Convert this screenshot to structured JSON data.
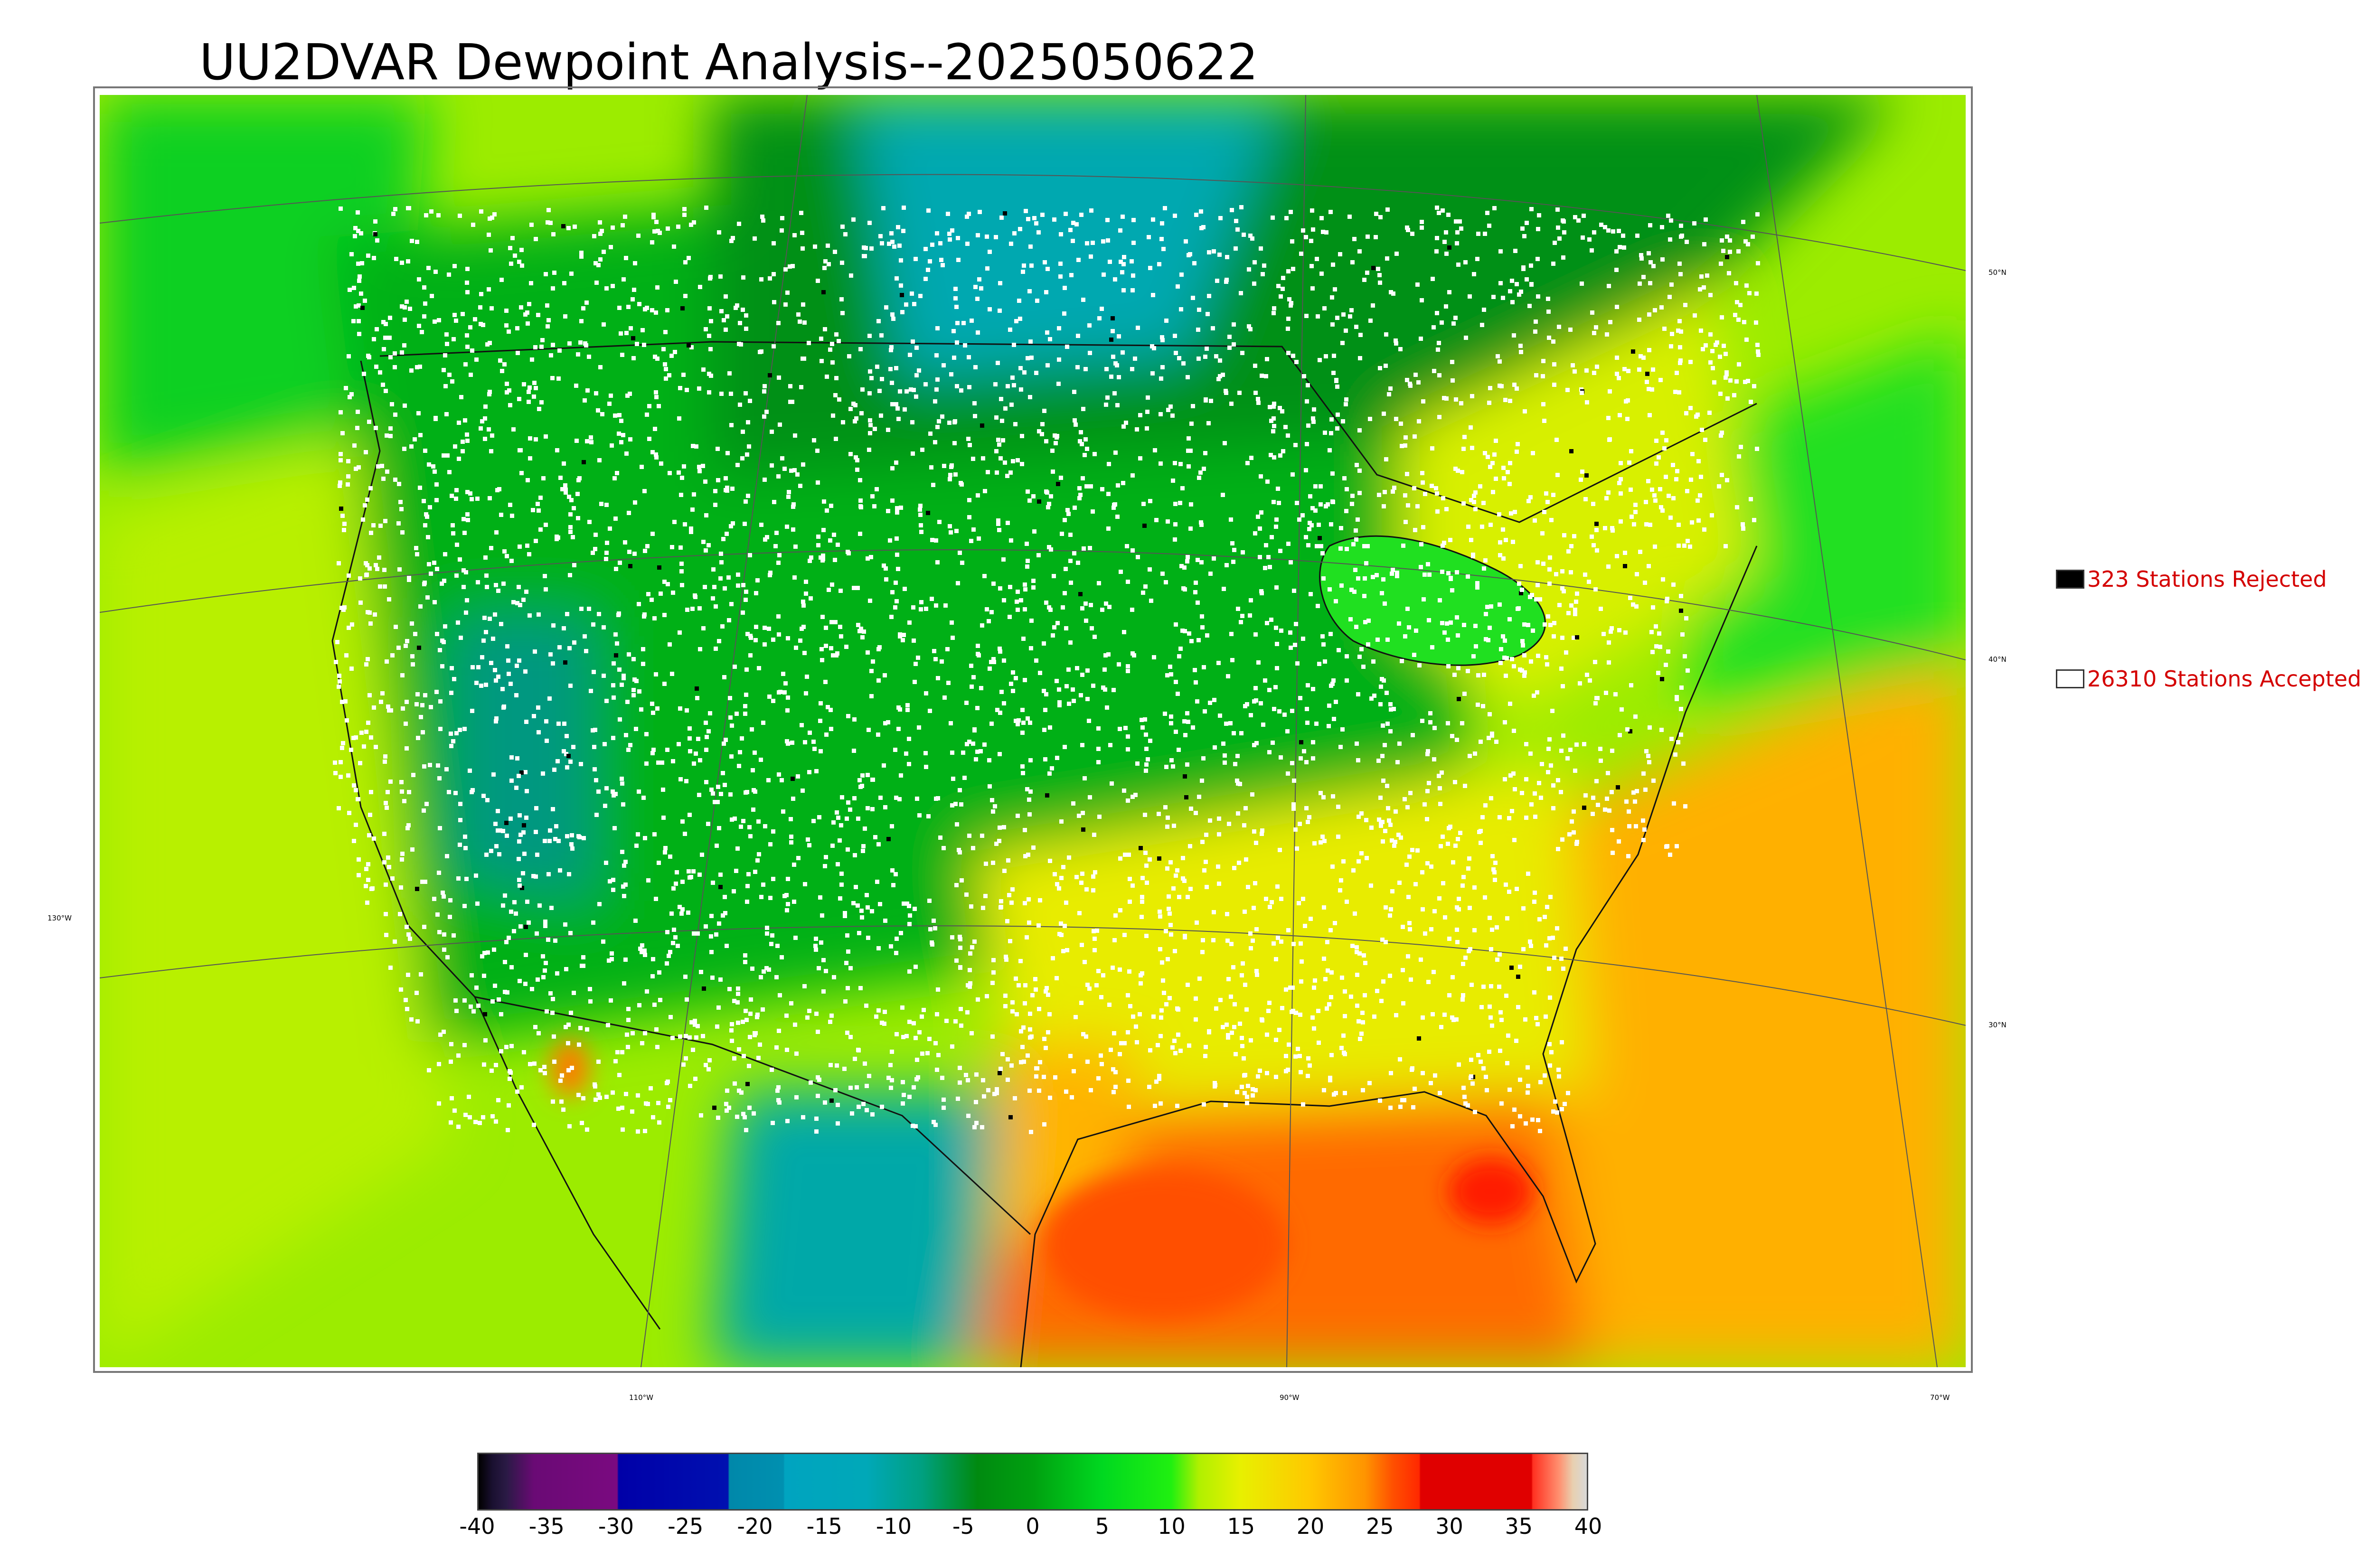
{
  "title": "UU2DVAR Dewpoint Analysis--2025050622",
  "legend": {
    "rejected": {
      "label": "323 Stations Rejected",
      "swatch_color": "#000000"
    },
    "accepted": {
      "label": "26310 Stations Accepted",
      "swatch_color": "#ffffff"
    }
  },
  "graticule": {
    "latitude_labels": [
      "50°N",
      "40°N",
      "30°N"
    ],
    "longitude_labels": [
      "130°W",
      "110°W",
      "90°W",
      "70°W"
    ]
  },
  "colorbar": {
    "min": -40,
    "max": 40,
    "ticks": [
      "-40",
      "-35",
      "-30",
      "-25",
      "-20",
      "-15",
      "-10",
      "-5",
      "0",
      "5",
      "10",
      "15",
      "20",
      "25",
      "30",
      "35",
      "40"
    ],
    "color_stops": [
      {
        "value": -40,
        "color": "#000000"
      },
      {
        "value": -39,
        "color": "#1a1030"
      },
      {
        "value": -38,
        "color": "#2a1a45"
      },
      {
        "value": -36,
        "color": "#6a0a75"
      },
      {
        "value": -30,
        "color": "#7a0a80"
      },
      {
        "value": -29.9,
        "color": "#0000a8"
      },
      {
        "value": -22,
        "color": "#0010b0"
      },
      {
        "value": -21.9,
        "color": "#0088aa"
      },
      {
        "value": -18,
        "color": "#0090b0"
      },
      {
        "value": -17.9,
        "color": "#00a4c0"
      },
      {
        "value": -12,
        "color": "#00a8b8"
      },
      {
        "value": -8,
        "color": "#00a080"
      },
      {
        "value": -4,
        "color": "#008a10"
      },
      {
        "value": 0,
        "color": "#00a010"
      },
      {
        "value": 5,
        "color": "#00d820"
      },
      {
        "value": 10,
        "color": "#20f010"
      },
      {
        "value": 12,
        "color": "#b0f000"
      },
      {
        "value": 15,
        "color": "#e8f000"
      },
      {
        "value": 20,
        "color": "#ffc800"
      },
      {
        "value": 24,
        "color": "#ff9400"
      },
      {
        "value": 26,
        "color": "#ff5000"
      },
      {
        "value": 27.9,
        "color": "#ff2800"
      },
      {
        "value": 28,
        "color": "#e00000"
      },
      {
        "value": 36,
        "color": "#e00000"
      },
      {
        "value": 36.1,
        "color": "#ff3020"
      },
      {
        "value": 38,
        "color": "#ff9070"
      },
      {
        "value": 39,
        "color": "#e8d0b0"
      },
      {
        "value": 40,
        "color": "#d8d8d8"
      }
    ]
  },
  "map_colors": {
    "cold_dry": "#00a8b0",
    "dark_green": "#008a10",
    "green": "#00d820",
    "lime": "#b8f000",
    "yellow": "#f0e800",
    "orange": "#ffb400",
    "red_orange": "#ff6a00"
  }
}
